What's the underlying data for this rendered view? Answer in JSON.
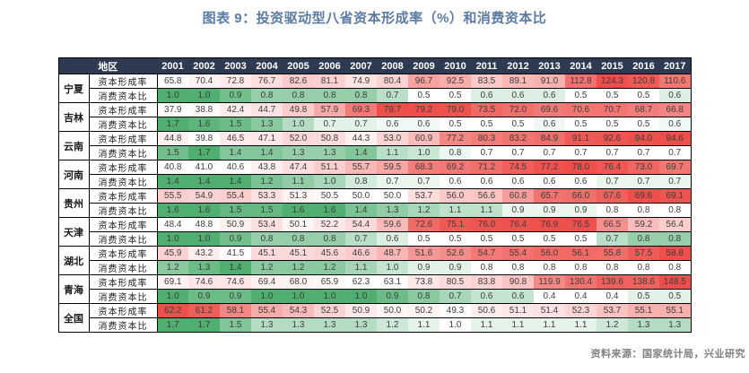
{
  "chart_data": {
    "type": "heatmap",
    "title": "图表 9：投资驱动型八省资本形成率（%）和消费资本比",
    "region_header": "地区",
    "columns": [
      "2001",
      "2002",
      "2003",
      "2004",
      "2005",
      "2006",
      "2007",
      "2008",
      "2009",
      "2010",
      "2011",
      "2012",
      "2013",
      "2014",
      "2015",
      "2016",
      "2017"
    ],
    "metric_labels": [
      "资本形成率",
      "消费资本比"
    ],
    "layout": {
      "legend": false,
      "color_scale_scope": "per-row",
      "grid": true
    },
    "groups": [
      {
        "region": "宁夏",
        "rows": [
          {
            "metric": "资本形成率",
            "kind": "rate",
            "values": [
              65.8,
              70.4,
              72.8,
              76.7,
              82.6,
              81.1,
              74.9,
              80.4,
              96.7,
              92.5,
              83.5,
              89.1,
              91.0,
              112.8,
              124.3,
              120.8,
              110.6
            ]
          },
          {
            "metric": "消费资本比",
            "kind": "ratio",
            "values": [
              1.0,
              1.0,
              0.9,
              0.8,
              0.8,
              0.8,
              0.8,
              0.7,
              0.5,
              0.5,
              0.6,
              0.6,
              0.6,
              0.5,
              0.5,
              0.5,
              0.6
            ]
          }
        ]
      },
      {
        "region": "吉林",
        "rows": [
          {
            "metric": "资本形成率",
            "kind": "rate",
            "values": [
              37.9,
              38.8,
              42.4,
              44.7,
              49.8,
              57.9,
              69.3,
              79.7,
              79.2,
              79.0,
              73.5,
              72.0,
              69.6,
              70.6,
              70.7,
              68.7,
              66.8
            ]
          },
          {
            "metric": "消费资本比",
            "kind": "ratio",
            "values": [
              1.7,
              1.6,
              1.5,
              1.3,
              1.0,
              0.7,
              0.7,
              0.6,
              0.6,
              0.5,
              0.5,
              0.5,
              0.6,
              0.5,
              0.5,
              0.5,
              0.6
            ]
          }
        ]
      },
      {
        "region": "云南",
        "rows": [
          {
            "metric": "资本形成率",
            "kind": "rate",
            "values": [
              44.8,
              39.8,
              46.5,
              47.1,
              52.0,
              50.8,
              44.3,
              53.0,
              60.9,
              77.2,
              80.3,
              83.2,
              84.9,
              91.1,
              92.6,
              94.0,
              94.6
            ]
          },
          {
            "metric": "消费资本比",
            "kind": "ratio",
            "values": [
              1.5,
              1.7,
              1.4,
              1.4,
              1.3,
              1.3,
              1.4,
              1.1,
              1.0,
              0.8,
              0.7,
              0.7,
              0.7,
              0.7,
              0.7,
              0.7,
              0.7
            ]
          }
        ]
      },
      {
        "region": "河南",
        "rows": [
          {
            "metric": "资本形成率",
            "kind": "rate",
            "values": [
              40.8,
              41.0,
              40.6,
              43.8,
              47.4,
              51.1,
              55.7,
              59.5,
              68.3,
              69.2,
              71.2,
              74.5,
              77.2,
              78.0,
              76.4,
              73.0,
              69.7
            ]
          },
          {
            "metric": "消费资本比",
            "kind": "ratio",
            "values": [
              1.4,
              1.4,
              1.4,
              1.2,
              1.1,
              1.0,
              0.8,
              0.7,
              0.7,
              0.6,
              0.6,
              0.6,
              0.6,
              0.6,
              0.7,
              0.7,
              0.7
            ]
          }
        ]
      },
      {
        "region": "贵州",
        "rows": [
          {
            "metric": "资本形成率",
            "kind": "rate",
            "values": [
              55.5,
              54.9,
              55.4,
              53.3,
              51.3,
              50.5,
              50.0,
              50.0,
              53.7,
              56.0,
              56.6,
              60.8,
              65.7,
              66.0,
              67.6,
              69.6,
              69.1
            ]
          },
          {
            "metric": "消费资本比",
            "kind": "ratio",
            "values": [
              1.6,
              1.6,
              1.5,
              1.5,
              1.6,
              1.6,
              1.4,
              1.3,
              1.2,
              1.1,
              1.1,
              0.9,
              0.9,
              0.9,
              0.8,
              0.8,
              0.8
            ]
          }
        ]
      },
      {
        "region": "天津",
        "rows": [
          {
            "metric": "资本形成率",
            "kind": "rate",
            "values": [
              48.4,
              48.8,
              50.9,
              53.4,
              50.1,
              52.2,
              54.4,
              59.6,
              72.6,
              75.1,
              76.0,
              76.4,
              76.9,
              76.5,
              66.5,
              59.2,
              56.4
            ]
          },
          {
            "metric": "消费资本比",
            "kind": "ratio",
            "values": [
              1.0,
              1.0,
              0.9,
              0.8,
              0.8,
              0.8,
              0.7,
              0.6,
              0.5,
              0.5,
              0.5,
              0.5,
              0.5,
              0.5,
              0.7,
              0.8,
              0.8
            ]
          }
        ]
      },
      {
        "region": "湖北",
        "rows": [
          {
            "metric": "资本形成率",
            "kind": "rate",
            "values": [
              45.9,
              43.2,
              41.5,
              45.1,
              45.1,
              45.6,
              46.6,
              48.7,
              51.6,
              52.6,
              54.7,
              55.4,
              56.0,
              56.1,
              55.8,
              57.5,
              58.8
            ]
          },
          {
            "metric": "消费资本比",
            "kind": "ratio",
            "values": [
              1.2,
              1.3,
              1.4,
              1.2,
              1.2,
              1.2,
              1.1,
              1.0,
              0.9,
              0.9,
              0.8,
              0.8,
              0.8,
              0.8,
              0.8,
              0.8,
              0.8
            ]
          }
        ]
      },
      {
        "region": "青海",
        "rows": [
          {
            "metric": "资本形成率",
            "kind": "rate",
            "values": [
              69.1,
              74.6,
              74.6,
              69.4,
              68.0,
              65.9,
              62.3,
              63.1,
              73.8,
              80.5,
              83.8,
              90.8,
              119.9,
              130.4,
              139.6,
              138.6,
              148.5
            ]
          },
          {
            "metric": "消费资本比",
            "kind": "ratio",
            "values": [
              1.0,
              0.9,
              0.9,
              1.0,
              1.0,
              1.0,
              1.0,
              0.9,
              0.8,
              0.7,
              0.6,
              0.6,
              0.4,
              0.4,
              0.4,
              0.5,
              0.5
            ]
          }
        ]
      },
      {
        "region": "全国",
        "rows": [
          {
            "metric": "资本形成率",
            "kind": "rate",
            "values": [
              62.2,
              61.2,
              58.1,
              55.4,
              54.3,
              52.5,
              50.9,
              50.0,
              50.2,
              49.3,
              50.6,
              51.1,
              51.4,
              52.3,
              53.7,
              55.1,
              55.1
            ]
          },
          {
            "metric": "消费资本比",
            "kind": "ratio",
            "values": [
              1.7,
              1.7,
              1.5,
              1.3,
              1.3,
              1.3,
              1.3,
              1.2,
              1.1,
              1.0,
              1.1,
              1.1,
              1.1,
              1.1,
              1.2,
              1.3,
              1.3
            ]
          }
        ]
      }
    ]
  },
  "source_note": "资料来源：国家统计局，兴业研究",
  "colors": {
    "title_text": "#5a7ba3",
    "header_bg": "#2d3a52",
    "header_text": "#ffffff",
    "rate_high": "#ee4f4a",
    "ratio_high": "#4fae70",
    "scale_low": "#ffffff",
    "source_text": "#7f7f7f",
    "border": "#000000"
  }
}
